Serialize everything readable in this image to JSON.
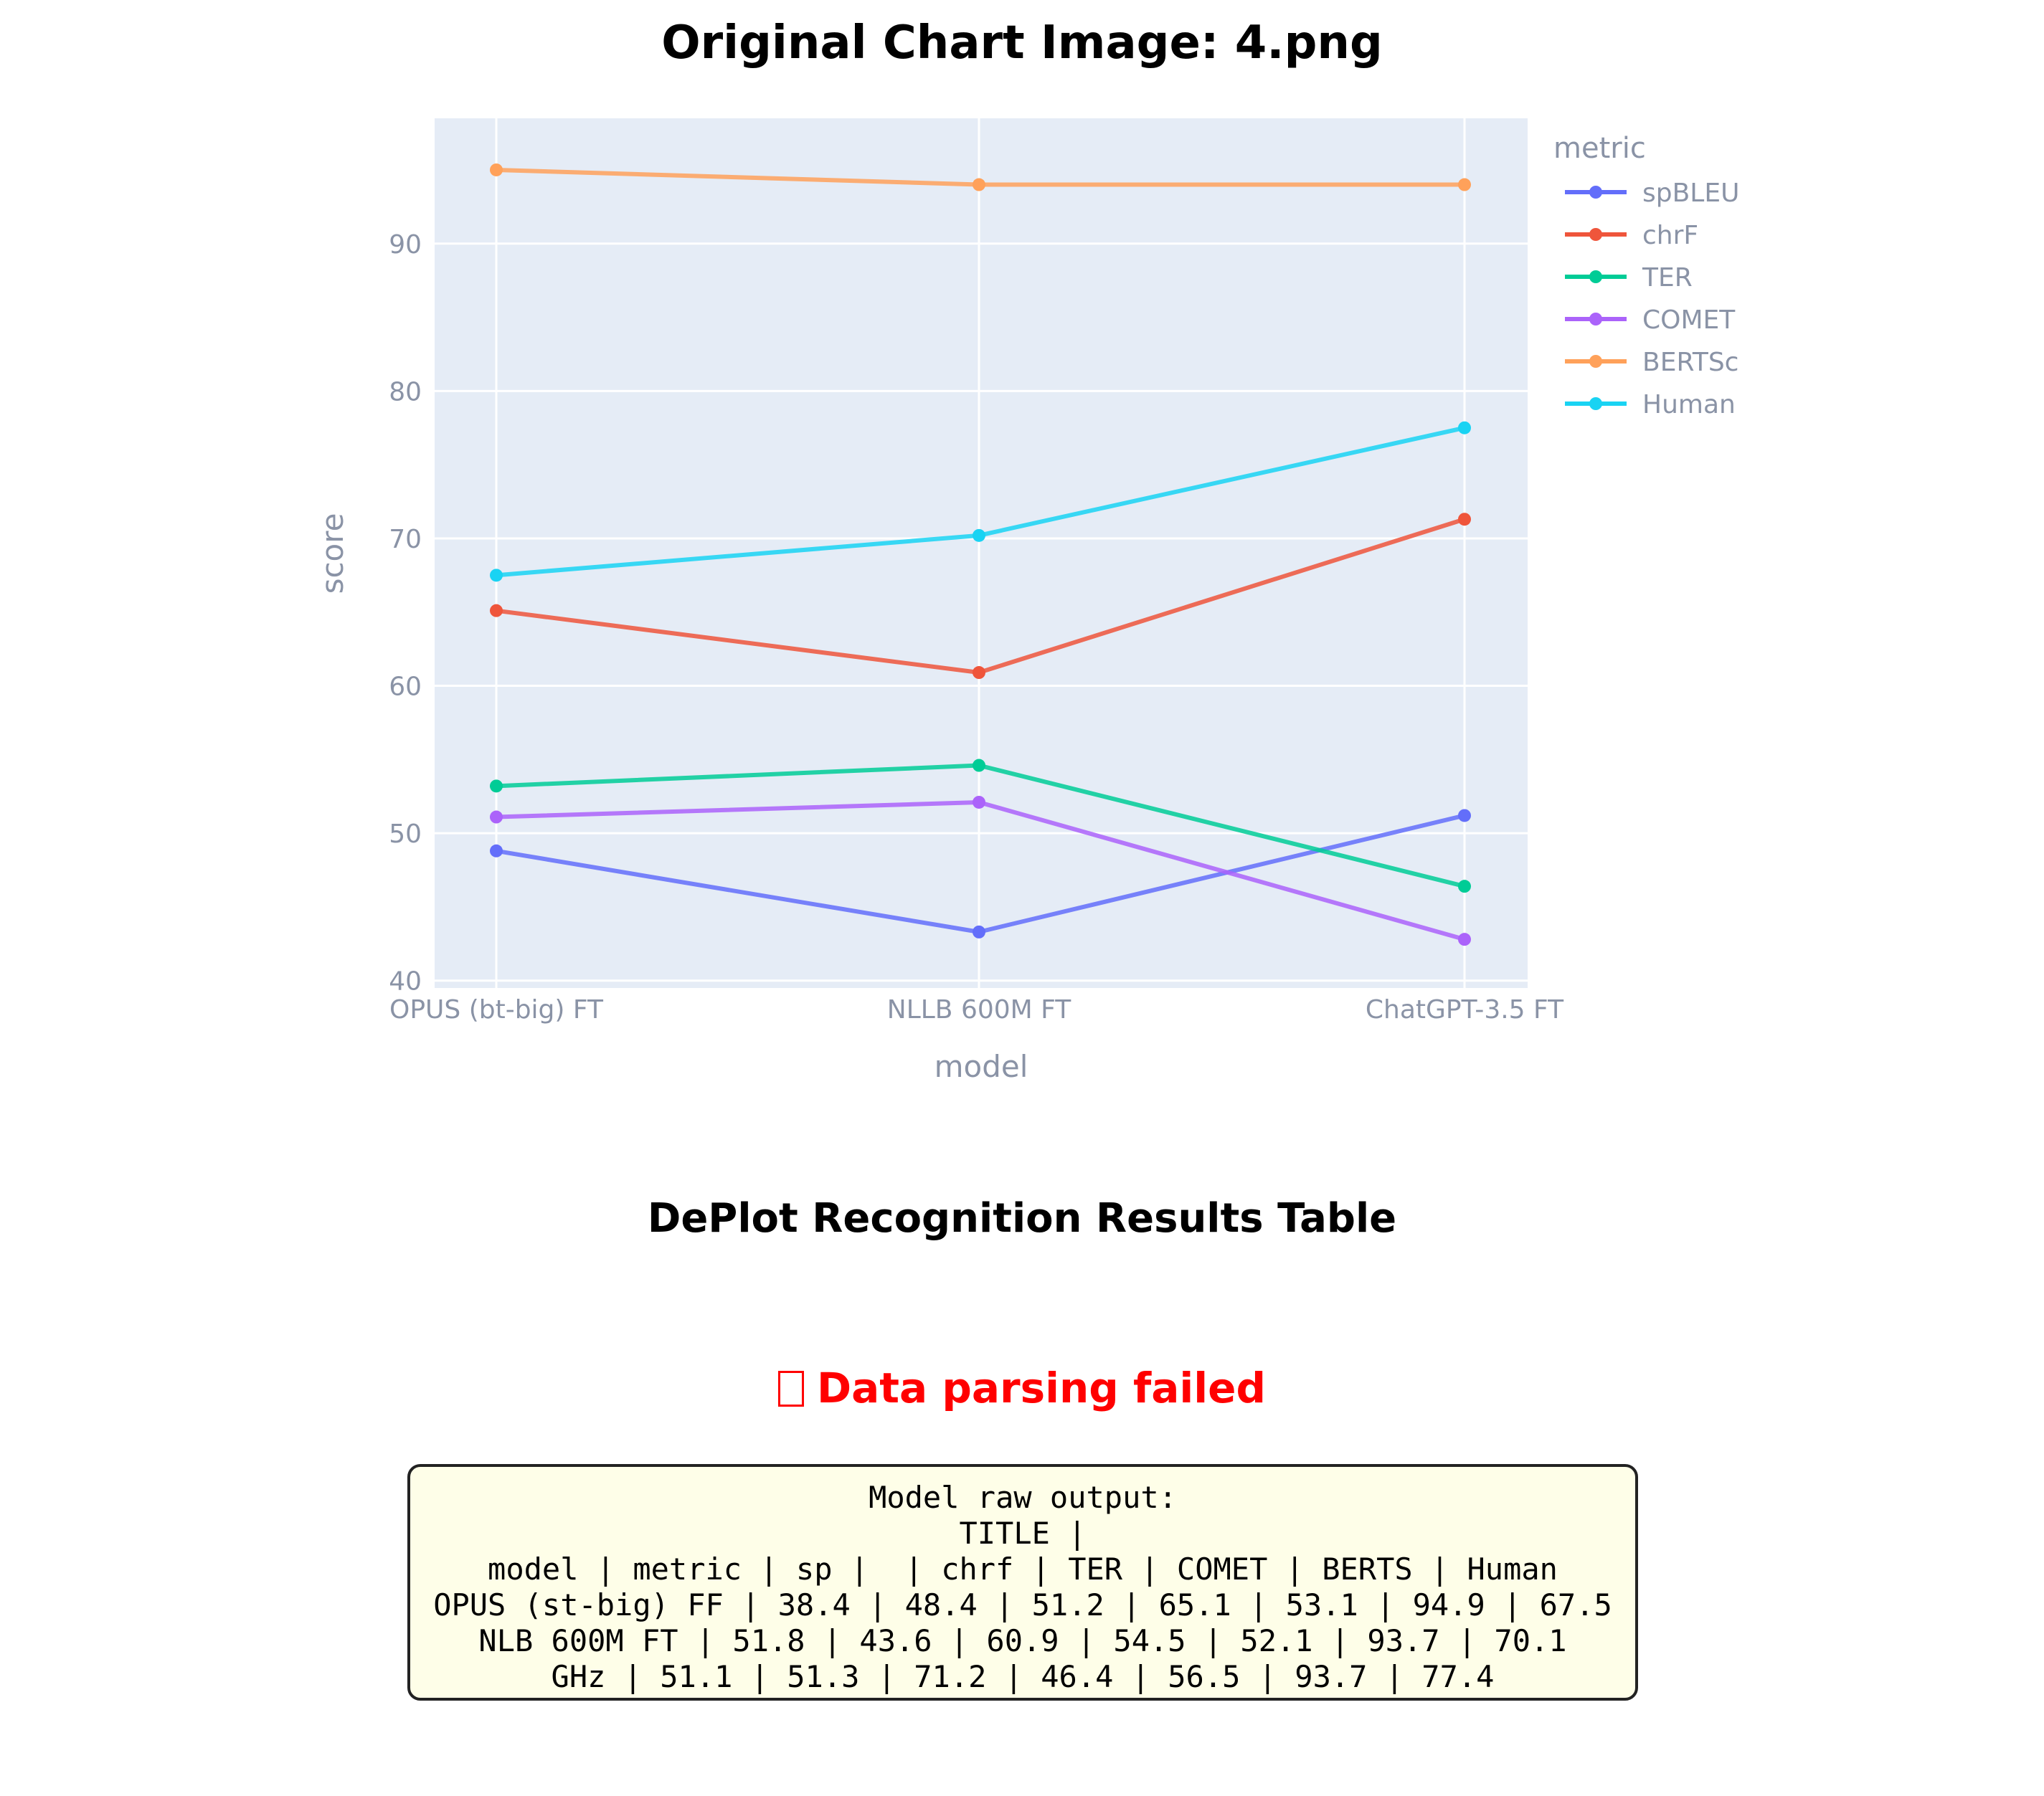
{
  "figure": {
    "title": "Original Chart Image: 4.png"
  },
  "chart_data": {
    "type": "line",
    "xlabel": "model",
    "ylabel": "score",
    "categories": [
      "OPUS (bt-big) FT",
      "NLLB 600M FT",
      "ChatGPT-3.5 FT"
    ],
    "yticks": [
      40,
      50,
      60,
      70,
      80,
      90
    ],
    "ylim": [
      39.5,
      98.5
    ],
    "grid": true,
    "legend": {
      "title": "metric",
      "placement": "right"
    },
    "series": [
      {
        "name": "spBLEU",
        "color": "#636efa",
        "values": [
          48.8,
          43.3,
          51.2
        ]
      },
      {
        "name": "chrF",
        "color": "#ef553b",
        "values": [
          65.1,
          60.9,
          71.3
        ]
      },
      {
        "name": "TER",
        "color": "#00cc96",
        "values": [
          53.2,
          54.6,
          46.4
        ]
      },
      {
        "name": "COMET",
        "color": "#ab63fa",
        "values": [
          51.1,
          52.1,
          42.8
        ]
      },
      {
        "name": "BERTSc",
        "color": "#ffa15a",
        "values": [
          95.0,
          94.0,
          94.0
        ]
      },
      {
        "name": "Human",
        "color": "#19d3f3",
        "values": [
          67.5,
          70.2,
          77.5
        ]
      }
    ]
  },
  "results": {
    "title": "DePlot Recognition Results Table",
    "error_message": "Data parsing failed",
    "raw_output_lines": [
      "Model raw output:",
      "TITLE |",
      "model | metric | sp |  | chrf | TER | COMET | BERTS | Human",
      "OPUS (st-big) FF | 38.4 | 48.4 | 51.2 | 65.1 | 53.1 | 94.9 | 67.5",
      "NLB 600M FT | 51.8 | 43.6 | 60.9 | 54.5 | 52.1 | 93.7 | 70.1",
      "GHz | 51.1 | 51.3 | 71.2 | 46.4 | 56.5 | 93.7 | 77.4"
    ]
  }
}
